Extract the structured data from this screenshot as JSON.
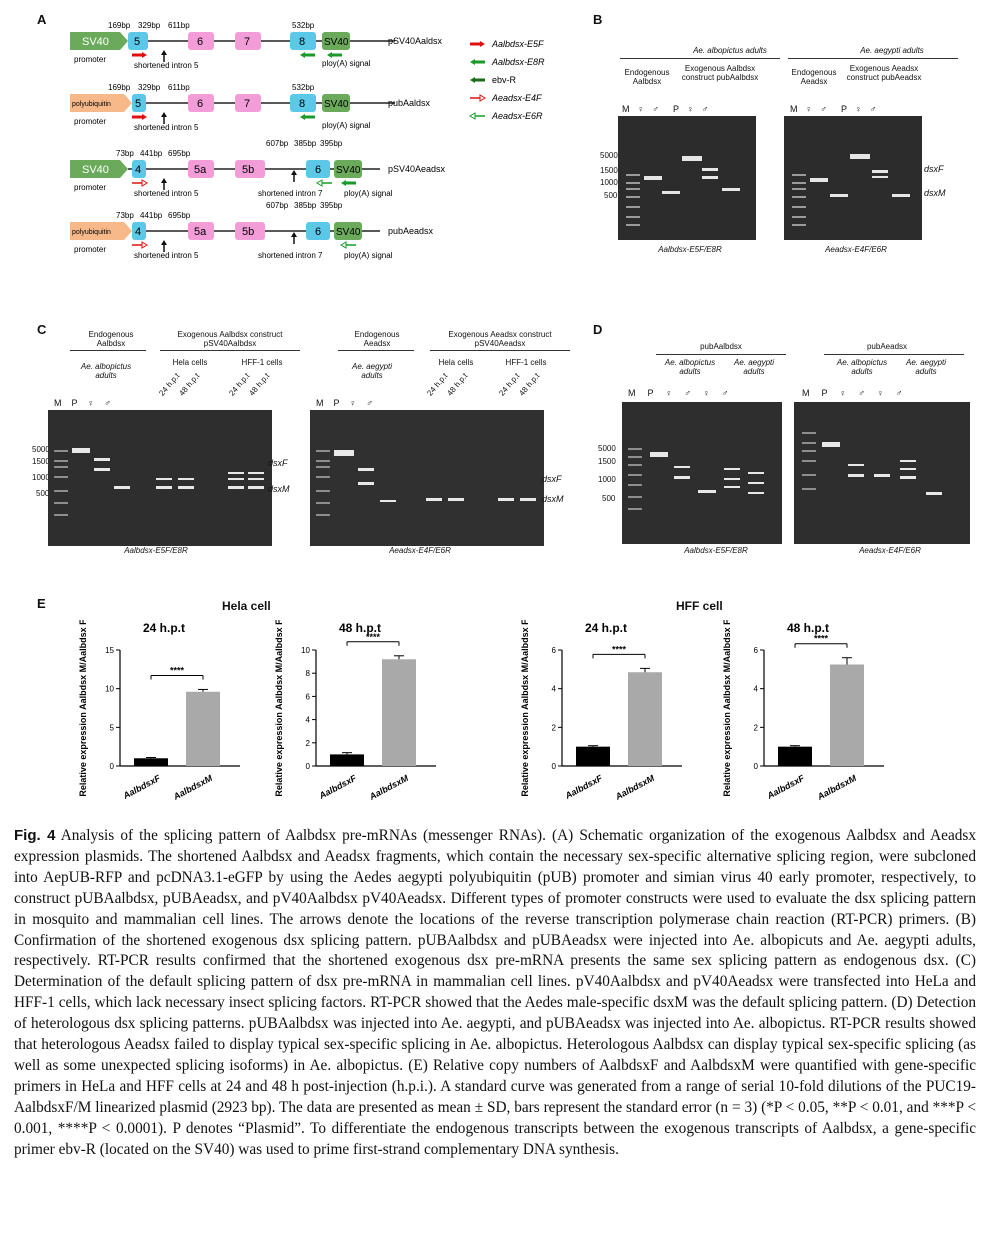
{
  "panels": {
    "A": "A",
    "B": "B",
    "C": "C",
    "D": "D",
    "E": "E"
  },
  "panelA": {
    "constructs": [
      {
        "name": "pSV40Aaldsx",
        "promoter": "SV40",
        "sizes": [
          "169bp",
          "329bp",
          "611bp",
          "532bp"
        ],
        "exons": [
          "5",
          "6",
          "7",
          "8"
        ],
        "end": "SV40",
        "promoter_label": "promoter",
        "intron": "shortened intron 5",
        "polyA": "ploy(A) signal"
      },
      {
        "name": "pubAaldsx",
        "promoter": "polyubiquitin",
        "sizes": [
          "169bp",
          "329bp",
          "611bp",
          "532bp"
        ],
        "exons": [
          "5",
          "6",
          "7",
          "8"
        ],
        "end": "SV40",
        "promoter_label": "promoter",
        "intron": "shortened intron 5",
        "polyA": "ploy(A) signal"
      },
      {
        "name": "pSV40Aeadsx",
        "promoter": "SV40",
        "sizes": [
          "73bp",
          "441bp",
          "695bp",
          "607bp",
          "385bp",
          "395bp"
        ],
        "exons": [
          "4",
          "5a",
          "5b",
          "6"
        ],
        "end": "SV40",
        "promoter_label": "promoter",
        "intron": "shortened intron 5",
        "intron2": "shortened intron 7",
        "polyA": "ploy(A) signal"
      },
      {
        "name": "pubAeadsx",
        "promoter": "polyubiquitin",
        "sizes": [
          "73bp",
          "441bp",
          "695bp",
          "607bp",
          "385bp",
          "395bp"
        ],
        "exons": [
          "4",
          "5a",
          "5b",
          "6"
        ],
        "end": "SV40",
        "promoter_label": "promoter",
        "intron": "shortened intron 5",
        "intron2": "shortened intron 7",
        "polyA": "ploy(A) signal"
      }
    ],
    "legend": [
      "Aalbdsx-E5F",
      "Aalbdsx-E8R",
      "ebv-R",
      "Aeadsx-E4F",
      "Aeadsx-E6R"
    ]
  },
  "panelB": {
    "groups": [
      {
        "title": "Ae. albopictus adults",
        "endo": "Endogenous Aalbdsx",
        "exo": "Exogenous Aalbdsx construct pubAalbdsx",
        "lanes": [
          "M",
          "♀",
          "♂",
          "P",
          "♀",
          "♂"
        ],
        "primer": "Aalbdsx-E5F/E8R"
      },
      {
        "title": "Ae. aegypti adults",
        "endo": "Endogenous Aeadsx",
        "exo": "Exogenous Aeadsx construct pubAeadsx",
        "lanes": [
          "M",
          "♀",
          "♂",
          "P",
          "♀",
          "♂"
        ],
        "primer": "Aeadsx-E4F/E6R"
      }
    ],
    "ladder": [
      "5000",
      "1500",
      "1000",
      "500"
    ],
    "dsxF": "dsxF",
    "dsxM": "dsxM"
  },
  "panelC": {
    "groups": [
      {
        "endo": "Endogenous Aalbdsx",
        "species": "Ae. albopictus adults",
        "exo": "Exogenous Aalbdsx construct pSV40Aalbdsx",
        "cells": [
          "Hela cells",
          "HFF-1 cells"
        ],
        "times": [
          "24 h.p.t",
          "48 h.p.t",
          "24 h.p.t",
          "48 h.p.t"
        ],
        "lanes": [
          "M",
          "P",
          "♀",
          "♂"
        ],
        "primer": "Aalbdsx-E5F/E8R"
      },
      {
        "endo": "Endogenous Aeadsx",
        "species": "Ae. aegypti adults",
        "exo": "Exogenous Aeadsx construct pSV40Aeadsx",
        "cells": [
          "Hela cells",
          "HFF-1 cells"
        ],
        "times": [
          "24 h.p.t",
          "48 h.p.t",
          "24 h.p.t",
          "48 h.p.t"
        ],
        "lanes": [
          "M",
          "P",
          "♀",
          "♂"
        ],
        "primer": "Aeadsx-E4F/E6R"
      }
    ]
  },
  "panelD": {
    "groups": [
      {
        "title": "pubAalbdsx",
        "species": [
          "Ae. albopictus adults",
          "Ae. aegypti adults"
        ],
        "lanes": [
          "M",
          "P",
          "♀",
          "♂",
          "♀",
          "♂"
        ],
        "primer": "Aalbdsx-E5F/E8R"
      },
      {
        "title": "pubAeadsx",
        "species": [
          "Ae. albopictus adults",
          "Ae. aegypti adults"
        ],
        "lanes": [
          "M",
          "P",
          "♀",
          "♂",
          "♀",
          "♂"
        ],
        "primer": "Aeadsx-E4F/E6R"
      }
    ]
  },
  "panelE": {
    "cell_titles": [
      "Hela cell",
      "HFF cell"
    ],
    "ylabel": "Relative expression Aalbdsx M/Aalbdsx F",
    "sig": "****"
  },
  "chart_data": [
    {
      "type": "bar",
      "title": "24 h.p.t",
      "categories": [
        "AalbdsxF",
        "AalbdsxM"
      ],
      "values": [
        1.0,
        9.6
      ],
      "errors": [
        0.1,
        0.3
      ],
      "ylim": [
        0,
        15
      ],
      "yticks": [
        0,
        5,
        10,
        15
      ]
    },
    {
      "type": "bar",
      "title": "48 h.p.t",
      "categories": [
        "AalbdsxF",
        "AalbdsxM"
      ],
      "values": [
        1.0,
        9.2
      ],
      "errors": [
        0.15,
        0.3
      ],
      "ylim": [
        0,
        10
      ],
      "yticks": [
        0,
        2,
        4,
        6,
        8,
        10
      ]
    },
    {
      "type": "bar",
      "title": "24 h.p.t",
      "categories": [
        "AalbdsxF",
        "AalbdsxM"
      ],
      "values": [
        1.0,
        4.85
      ],
      "errors": [
        0.05,
        0.2
      ],
      "ylim": [
        0,
        6
      ],
      "yticks": [
        0,
        2,
        4,
        6
      ]
    },
    {
      "type": "bar",
      "title": "48 h.p.t",
      "categories": [
        "AalbdsxF",
        "AalbdsxM"
      ],
      "values": [
        1.0,
        5.25
      ],
      "errors": [
        0.05,
        0.35
      ],
      "ylim": [
        0,
        6
      ],
      "yticks": [
        0,
        2,
        4,
        6
      ]
    }
  ],
  "caption": {
    "fig_label": "Fig. 4",
    "text": " Analysis of the splicing pattern of Aalbdsx pre-mRNAs (messenger RNAs). (A) Schematic organization of the exogenous Aalbdsx and Aeadsx expression plasmids. The shortened Aalbdsx and Aeadsx fragments, which contain the necessary sex-specific alternative splicing region, were subcloned into AepUB-RFP and pcDNA3.1-eGFP by using the Aedes aegypti polyubiquitin (pUB) promoter and simian virus 40 early promoter, respectively, to construct pUBAalbdsx, pUBAeadsx, and pV40Aalbdsx pV40Aeadsx. Different types of promoter constructs were used to evaluate the dsx splicing pattern in mosquito and mammalian cell lines. The arrows denote the locations of the reverse transcription polymerase chain reaction (RT-PCR) primers. (B) Confirmation of the shortened exogenous dsx splicing pattern. pUBAalbdsx and pUBAeadsx were injected into Ae. albopicuts and Ae. aegypti adults, respectively. RT-PCR results confirmed that the shortened exogenous dsx pre-mRNA presents the same sex splicing pattern as endogenous dsx. (C) Determination of the default splicing pattern of dsx pre-mRNA in mammalian cell lines. pV40Aalbdsx and pV40Aeadsx were transfected into HeLa and HFF-1 cells, which lack necessary insect splicing factors. RT-PCR showed that the Aedes male-specific dsxM was the default splicing pattern. (D) Detection of heterologous dsx splicing patterns. pUBAalbdsx was injected into Ae. aegypti, and pUBAeadsx was injected into Ae. albopictus. RT-PCR results showed that heterologous Aeadsx failed to display typical sex-specific splicing in Ae. albopictus. Heterologous Aalbdsx can display typical sex-specific splicing (as well as some unexpected splicing isoforms) in Ae. albopictus. (E) Relative copy numbers of AalbdsxF and AalbdsxM were quantified with gene-specific primers in HeLa and HFF cells at 24 and 48 h post-injection (h.p.i.). A standard curve was generated from a range of serial 10-fold dilutions of the PUC19-AalbdsxF/M linearized plasmid (2923 bp). The data are presented as mean ± SD, bars represent the standard error (n = 3) (*P < 0.05, **P < 0.01, and ***P < 0.001, ****P < 0.0001). P denotes “Plasmid”. To differentiate the endogenous transcripts between the exogenous transcripts of Aalbdsx, a gene-specific primer ebv-R (located on the SV40) was used to prime first-strand complementary DNA synthesis."
  }
}
